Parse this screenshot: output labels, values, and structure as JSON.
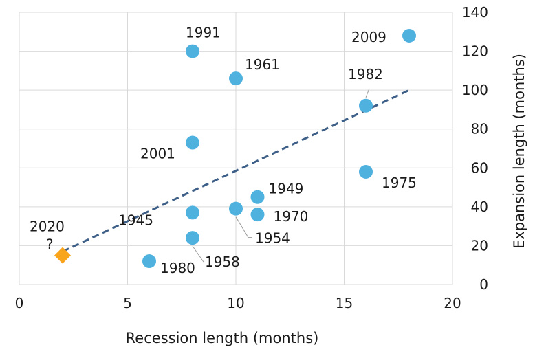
{
  "chart_data": {
    "type": "scatter",
    "title": "",
    "xlabel": "Recession length (months)",
    "ylabel": "Expansion length (months)",
    "xlim": [
      0,
      20
    ],
    "ylim": [
      0,
      140
    ],
    "x_ticks": [
      "0",
      "5",
      "10",
      "15",
      "20"
    ],
    "y_ticks": [
      "0",
      "20",
      "40",
      "60",
      "80",
      "100",
      "120",
      "140"
    ],
    "y_axis_side": "right",
    "grid": true,
    "colors": {
      "points": "#4fb1de",
      "highlight": "#f8a51b",
      "trend": "#3d5f87",
      "grid": "#d9d9d9"
    },
    "points": [
      {
        "label": "1945",
        "x": 8,
        "y": 37
      },
      {
        "label": "1949",
        "x": 11,
        "y": 45
      },
      {
        "label": "1954",
        "x": 10,
        "y": 39
      },
      {
        "label": "1958",
        "x": 8,
        "y": 24
      },
      {
        "label": "1961",
        "x": 10,
        "y": 106
      },
      {
        "label": "1970",
        "x": 11,
        "y": 36
      },
      {
        "label": "1975",
        "x": 16,
        "y": 58
      },
      {
        "label": "1980",
        "x": 6,
        "y": 12
      },
      {
        "label": "1982",
        "x": 16,
        "y": 92
      },
      {
        "label": "1991",
        "x": 8,
        "y": 120
      },
      {
        "label": "2001",
        "x": 8,
        "y": 73
      },
      {
        "label": "2009",
        "x": 18,
        "y": 128
      }
    ],
    "highlight_point": {
      "label": "2020",
      "label_line2": "?",
      "x": 2,
      "y": 15,
      "marker": "diamond"
    },
    "trendline": {
      "style": "dashed",
      "x": [
        2,
        18
      ],
      "y": [
        17,
        100
      ]
    }
  }
}
